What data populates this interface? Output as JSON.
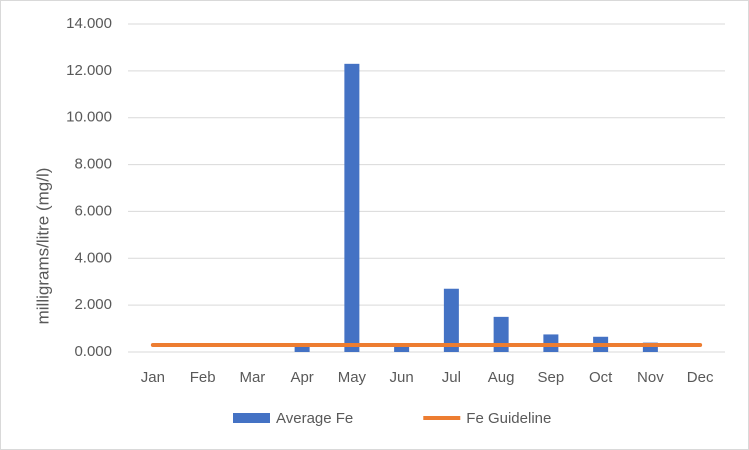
{
  "chart_data": {
    "type": "bar",
    "y_label": "milligrams/litre (mg/l)",
    "categories": [
      "Jan",
      "Feb",
      "Mar",
      "Apr",
      "May",
      "Jun",
      "Jul",
      "Aug",
      "Sep",
      "Oct",
      "Nov",
      "Dec"
    ],
    "series": [
      {
        "name": "Average Fe",
        "type": "bar",
        "color": "#4472c4",
        "values": [
          null,
          null,
          null,
          0.25,
          12.3,
          0.25,
          2.7,
          1.5,
          0.75,
          0.65,
          0.4,
          null
        ]
      },
      {
        "name": "Fe Guideline",
        "type": "line",
        "color": "#ed7d31",
        "values": [
          0.3,
          0.3,
          0.3,
          0.3,
          0.3,
          0.3,
          0.3,
          0.3,
          0.3,
          0.3,
          0.3,
          0.3
        ]
      }
    ],
    "ylim": [
      0,
      14
    ],
    "yticks": [
      {
        "value": 0,
        "label": "0.000"
      },
      {
        "value": 2,
        "label": "2.000"
      },
      {
        "value": 4,
        "label": "4.000"
      },
      {
        "value": 6,
        "label": "6.000"
      },
      {
        "value": 8,
        "label": "8.000"
      },
      {
        "value": 10,
        "label": "10.000"
      },
      {
        "value": 12,
        "label": "12.000"
      },
      {
        "value": 14,
        "label": "14.000"
      }
    ],
    "grid": true,
    "legend": "bottom"
  }
}
